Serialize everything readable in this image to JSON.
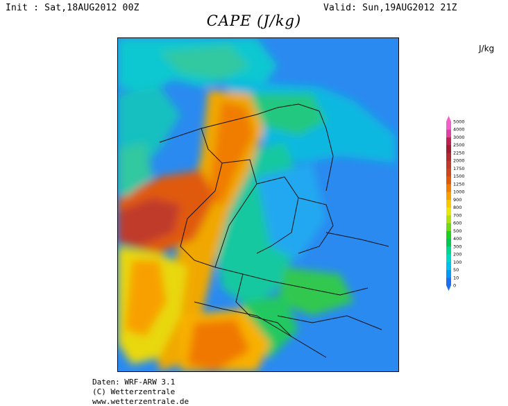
{
  "header": {
    "init": "Init : Sat,18AUG2012 00Z",
    "valid": "Valid: Sun,19AUG2012 21Z",
    "title": "CAPE (J/kg)"
  },
  "legend": {
    "unit": "J/kg",
    "levels": [
      "0",
      "10",
      "50",
      "100",
      "200",
      "300",
      "400",
      "500",
      "600",
      "700",
      "800",
      "900",
      "1000",
      "1250",
      "1500",
      "1750",
      "2000",
      "2250",
      "2500",
      "3000",
      "4000",
      "5000"
    ],
    "colors": [
      "#1e6ff0",
      "#0099f5",
      "#00c0f0",
      "#00d8c8",
      "#00d890",
      "#00c850",
      "#20d020",
      "#70d818",
      "#b0e010",
      "#e8e808",
      "#f8c800",
      "#f8a000",
      "#f07c00",
      "#e05a0a",
      "#d0441c",
      "#c03a2a",
      "#b02a30",
      "#a01c30",
      "#c02050",
      "#e040a0",
      "#f060c8"
    ]
  },
  "credits": {
    "line1": "Daten: WRF-ARW 3.1",
    "line2": "(C) Wetterzentrale",
    "line3": "www.wetterzentrale.de"
  }
}
